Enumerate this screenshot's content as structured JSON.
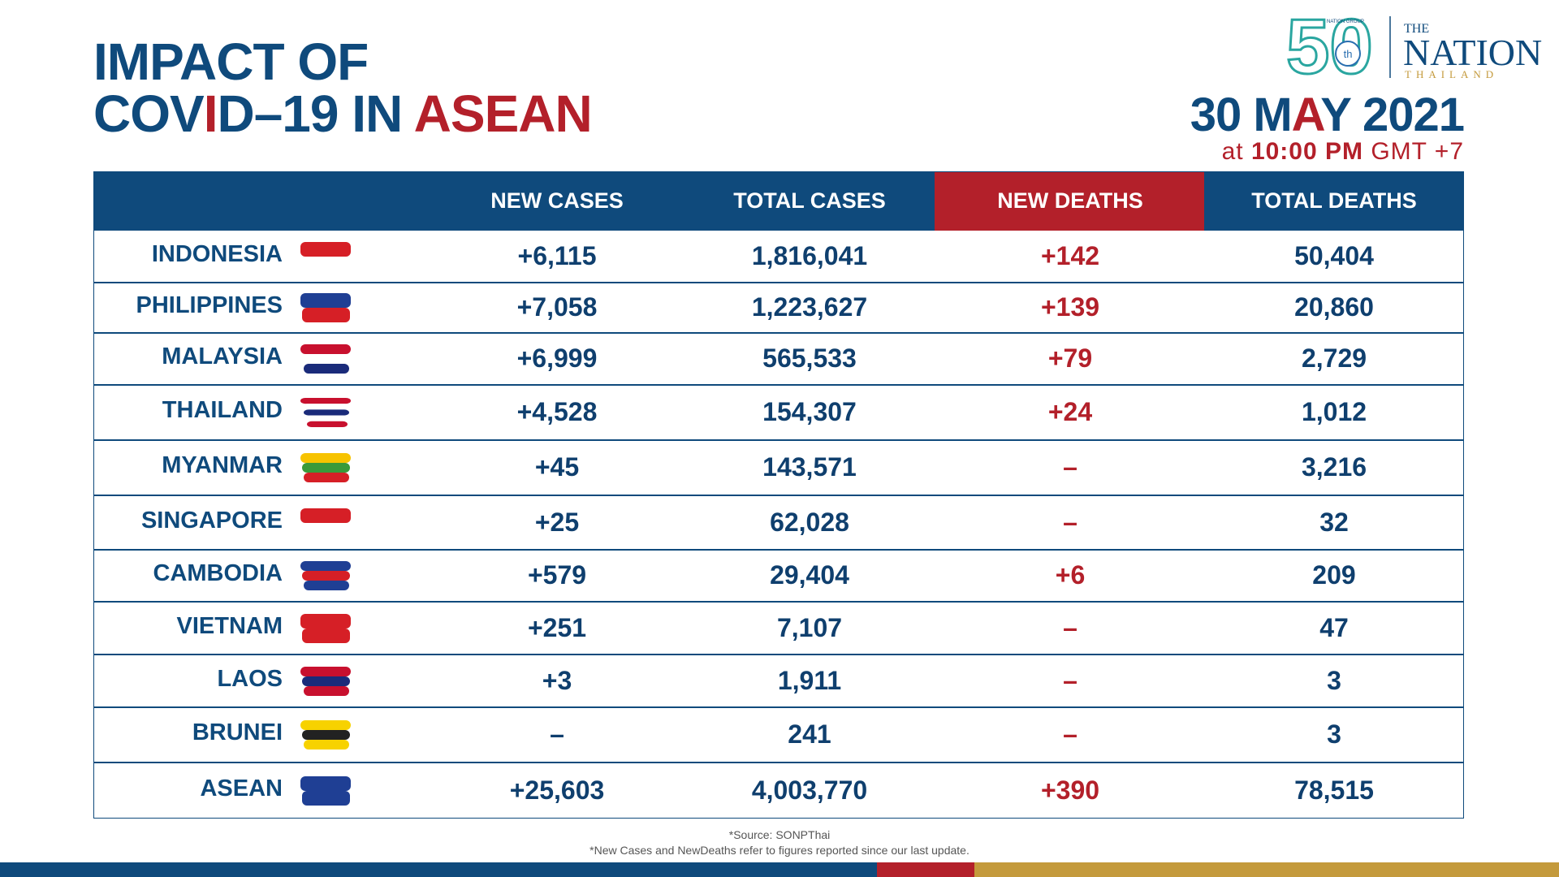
{
  "header": {
    "title_line1": "IMPACT OF",
    "title_line2": [
      "COV",
      "I",
      "D–19 IN ",
      "ASEAN"
    ],
    "date": [
      "30 M",
      "A",
      "Y 2021"
    ],
    "time": [
      "at ",
      "10:00 PM",
      " GMT +7"
    ]
  },
  "logo": {
    "anniversary": "50",
    "suffix": "th",
    "group": "NATION GROUP",
    "the": "THE",
    "name": "NATION",
    "country": "THAILAND"
  },
  "table": {
    "columns": [
      "NEW CASES",
      "TOTAL CASES",
      "NEW DEATHS",
      "TOTAL DEATHS"
    ],
    "rows": [
      [
        "INDONESIA",
        "+6,115",
        "1,816,041",
        "+142",
        "50,404"
      ],
      [
        "PHILIPPINES",
        "+7,058",
        "1,223,627",
        "+139",
        "20,860"
      ],
      [
        "MALAYSIA",
        "+6,999",
        "565,533",
        "+79",
        "2,729"
      ],
      [
        "THAILAND",
        "+4,528",
        "154,307",
        "+24",
        "1,012"
      ],
      [
        "MYANMAR",
        "+45",
        "143,571",
        "–",
        "3,216"
      ],
      [
        "SINGAPORE",
        "+25",
        "62,028",
        "–",
        "32"
      ],
      [
        "CAMBODIA",
        "+579",
        "29,404",
        "+6",
        "209"
      ],
      [
        "VIETNAM",
        "+251",
        "7,107",
        "–",
        "47"
      ],
      [
        "LAOS",
        "+3",
        "1,911",
        "–",
        "3"
      ],
      [
        "BRUNEI",
        "–",
        "241",
        "–",
        "3"
      ],
      [
        "ASEAN",
        "+25,603",
        "4,003,770",
        "+390",
        "78,515"
      ]
    ]
  },
  "footer": {
    "source": "*Source: SONPThai",
    "note": "*New Cases and NewDeaths refer to figures reported since our last update."
  }
}
